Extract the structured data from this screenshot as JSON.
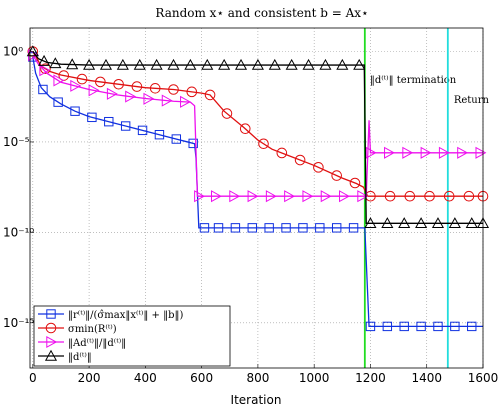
{
  "chart_data": {
    "type": "line",
    "title": "Random x⋆ and consistent b = Ax⋆",
    "xlabel": "Iteration",
    "ylabel": "",
    "xlim": [
      -10,
      1600
    ],
    "ylim_log10": [
      -17.5,
      1.3
    ],
    "y_scale": "log",
    "grid": true,
    "x_ticks": [
      0,
      200,
      400,
      600,
      800,
      1000,
      1200,
      1400,
      1600
    ],
    "y_ticks": [
      {
        "exp": 0,
        "label": "10⁰"
      },
      {
        "exp": -5,
        "label": "10⁻⁵"
      },
      {
        "exp": -10,
        "label": "10⁻¹⁰"
      },
      {
        "exp": -15,
        "label": "10⁻¹⁵"
      }
    ],
    "legend_position": "bottom-left",
    "vlines": [
      {
        "x": 1180,
        "color": "#22dd22",
        "label": "‖d⁽ᵗ⁾‖ termination"
      },
      {
        "x": 1475,
        "color": "#22dddd",
        "label": "Return"
      }
    ],
    "series": [
      {
        "name": "‖r⁽ᵗ⁾‖/(σ̂max‖x⁽ᵗ⁾‖ + ‖b‖)",
        "color": "#1030e0",
        "marker": "square",
        "points": [
          [
            0,
            -0.3
          ],
          [
            10,
            -1.2
          ],
          [
            30,
            -2.0
          ],
          [
            60,
            -2.5
          ],
          [
            100,
            -2.9
          ],
          [
            150,
            -3.3
          ],
          [
            200,
            -3.6
          ],
          [
            250,
            -3.8
          ],
          [
            300,
            -4.0
          ],
          [
            350,
            -4.2
          ],
          [
            400,
            -4.4
          ],
          [
            450,
            -4.6
          ],
          [
            500,
            -4.8
          ],
          [
            550,
            -5.0
          ],
          [
            575,
            -5.1
          ],
          [
            580,
            -5.9
          ],
          [
            590,
            -9.75
          ],
          [
            700,
            -9.75
          ],
          [
            800,
            -9.75
          ],
          [
            1000,
            -9.75
          ],
          [
            1170,
            -9.75
          ],
          [
            1180,
            -9.75
          ],
          [
            1195,
            -15.2
          ],
          [
            1300,
            -15.2
          ],
          [
            1400,
            -15.2
          ],
          [
            1600,
            -15.2
          ]
        ],
        "marker_x": [
          0,
          36,
          90,
          150,
          210,
          270,
          330,
          390,
          450,
          510,
          570,
          610,
          660,
          720,
          780,
          840,
          900,
          960,
          1020,
          1080,
          1140,
          1200,
          1260,
          1320,
          1380,
          1440,
          1500,
          1560
        ]
      },
      {
        "name": "σmin(R⁽ᵗ⁾)",
        "color": "#e01010",
        "marker": "circle",
        "points": [
          [
            0,
            0
          ],
          [
            30,
            -0.8
          ],
          [
            60,
            -1.1
          ],
          [
            100,
            -1.3
          ],
          [
            200,
            -1.6
          ],
          [
            300,
            -1.8
          ],
          [
            400,
            -2.0
          ],
          [
            500,
            -2.1
          ],
          [
            600,
            -2.3
          ],
          [
            630,
            -2.4
          ],
          [
            680,
            -3.3
          ],
          [
            750,
            -4.2
          ],
          [
            800,
            -4.9
          ],
          [
            850,
            -5.4
          ],
          [
            900,
            -5.7
          ],
          [
            1000,
            -6.3
          ],
          [
            1100,
            -7.0
          ],
          [
            1150,
            -7.3
          ],
          [
            1175,
            -7.5
          ],
          [
            1190,
            -8.0
          ],
          [
            1300,
            -8.0
          ],
          [
            1400,
            -8.0
          ],
          [
            1600,
            -8.0
          ]
        ],
        "marker_x": [
          0,
          45,
          110,
          175,
          240,
          305,
          370,
          435,
          500,
          565,
          630,
          690,
          755,
          820,
          885,
          950,
          1015,
          1080,
          1145,
          1200,
          1270,
          1340,
          1410,
          1480,
          1550,
          1600
        ]
      },
      {
        "name": "‖Ad⁽ᵗ⁾‖/‖d⁽ᵗ⁾‖",
        "color": "#ee10ee",
        "marker": "triangle-right",
        "points": [
          [
            0,
            -0.2
          ],
          [
            20,
            -0.7
          ],
          [
            50,
            -1.2
          ],
          [
            100,
            -1.7
          ],
          [
            200,
            -2.1
          ],
          [
            300,
            -2.4
          ],
          [
            400,
            -2.6
          ],
          [
            500,
            -2.75
          ],
          [
            560,
            -2.8
          ],
          [
            575,
            -3.0
          ],
          [
            585,
            -8.0
          ],
          [
            700,
            -8.0
          ],
          [
            800,
            -8.0
          ],
          [
            1000,
            -8.0
          ],
          [
            1185,
            -8.0
          ],
          [
            1195,
            -3.8
          ],
          [
            1200,
            -5.6
          ],
          [
            1300,
            -5.6
          ],
          [
            1400,
            -5.6
          ],
          [
            1600,
            -5.6
          ]
        ],
        "marker_x": [
          0,
          40,
          90,
          150,
          215,
          280,
          345,
          410,
          475,
          540,
          590,
          650,
          715,
          780,
          845,
          910,
          975,
          1040,
          1105,
          1170,
          1200,
          1265,
          1330,
          1395,
          1460,
          1525,
          1590
        ]
      },
      {
        "name": "‖d⁽ᵗ⁾‖",
        "color": "#000000",
        "marker": "triangle-up",
        "points": [
          [
            0,
            0
          ],
          [
            20,
            -0.4
          ],
          [
            50,
            -0.6
          ],
          [
            100,
            -0.7
          ],
          [
            200,
            -0.75
          ],
          [
            400,
            -0.75
          ],
          [
            600,
            -0.75
          ],
          [
            800,
            -0.75
          ],
          [
            1000,
            -0.75
          ],
          [
            1178,
            -0.75
          ],
          [
            1185,
            -9.5
          ],
          [
            1300,
            -9.5
          ],
          [
            1400,
            -9.5
          ],
          [
            1600,
            -9.5
          ]
        ],
        "marker_x": [
          0,
          40,
          80,
          140,
          200,
          260,
          320,
          380,
          440,
          500,
          560,
          620,
          680,
          740,
          800,
          860,
          920,
          980,
          1040,
          1100,
          1160,
          1200,
          1260,
          1320,
          1380,
          1440,
          1500,
          1560,
          1600
        ]
      }
    ]
  }
}
